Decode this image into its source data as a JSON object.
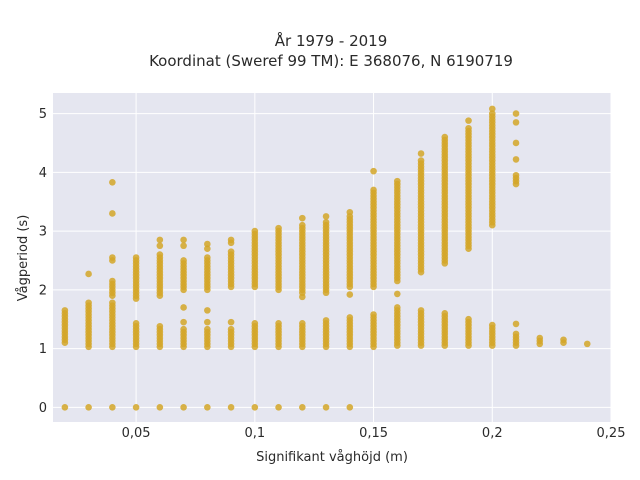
{
  "chart_data": {
    "type": "scatter",
    "title": "År 1979 - 2019",
    "subtitle": "Koordinat (Sweref 99 TM): E 368076, N 6190719",
    "xlabel": "Signifikant våghöjd (m)",
    "ylabel": "Vågperiod (s)",
    "xlim": [
      0.015,
      0.25
    ],
    "ylim": [
      -0.25,
      5.35
    ],
    "xticks": [
      0.05,
      0.1,
      0.15,
      0.2,
      0.25
    ],
    "xtick_labels": [
      "0,05",
      "0,1",
      "0,15",
      "0,2",
      "0,25"
    ],
    "yticks": [
      0,
      1,
      2,
      3,
      4,
      5
    ],
    "ytick_labels": [
      "0",
      "1",
      "2",
      "3",
      "4",
      "5"
    ],
    "grid": true,
    "colors": {
      "marker": "#d4a628",
      "plot_bg": "#e5e6f0",
      "grid": "#ffffff"
    },
    "columns": [
      {
        "x": 0.02,
        "ranges": [
          [
            1.1,
            1.65
          ]
        ],
        "points": [
          0
        ]
      },
      {
        "x": 0.03,
        "ranges": [
          [
            1.03,
            1.8
          ]
        ],
        "points": [
          0,
          2.27
        ]
      },
      {
        "x": 0.04,
        "ranges": [
          [
            1.03,
            1.8
          ],
          [
            1.9,
            2.15
          ]
        ],
        "points": [
          0,
          2.5,
          2.55,
          3.3,
          3.83
        ]
      },
      {
        "x": 0.05,
        "ranges": [
          [
            1.03,
            1.45
          ],
          [
            1.85,
            2.55
          ]
        ],
        "points": [
          0
        ]
      },
      {
        "x": 0.06,
        "ranges": [
          [
            1.03,
            1.4
          ],
          [
            1.9,
            2.6
          ]
        ],
        "points": [
          0,
          2.75,
          2.85
        ]
      },
      {
        "x": 0.07,
        "ranges": [
          [
            1.03,
            1.35
          ],
          [
            2.0,
            2.5
          ]
        ],
        "points": [
          0,
          1.45,
          1.7,
          2.75,
          2.85
        ]
      },
      {
        "x": 0.08,
        "ranges": [
          [
            1.03,
            1.35
          ],
          [
            2.0,
            2.55
          ]
        ],
        "points": [
          0,
          1.45,
          1.65,
          2.7,
          2.78
        ]
      },
      {
        "x": 0.09,
        "ranges": [
          [
            1.03,
            1.35
          ],
          [
            2.05,
            2.65
          ]
        ],
        "points": [
          0,
          1.45,
          2.8,
          2.85
        ]
      },
      {
        "x": 0.1,
        "ranges": [
          [
            1.03,
            1.45
          ],
          [
            2.05,
            2.98
          ]
        ],
        "points": [
          0,
          3.0
        ]
      },
      {
        "x": 0.11,
        "ranges": [
          [
            1.03,
            1.45
          ],
          [
            2.0,
            3.05
          ]
        ],
        "points": [
          0
        ]
      },
      {
        "x": 0.12,
        "ranges": [
          [
            1.03,
            1.45
          ],
          [
            1.95,
            3.1
          ]
        ],
        "points": [
          0,
          1.88,
          3.22
        ]
      },
      {
        "x": 0.13,
        "ranges": [
          [
            1.03,
            1.5
          ],
          [
            2.0,
            3.15
          ]
        ],
        "points": [
          0,
          1.95,
          3.25
        ]
      },
      {
        "x": 0.14,
        "ranges": [
          [
            1.03,
            1.55
          ],
          [
            2.05,
            3.25
          ]
        ],
        "points": [
          0,
          1.92,
          3.32
        ]
      },
      {
        "x": 0.15,
        "ranges": [
          [
            1.03,
            1.6
          ],
          [
            2.05,
            3.7
          ]
        ],
        "points": [
          4.02
        ]
      },
      {
        "x": 0.16,
        "ranges": [
          [
            1.05,
            1.7
          ],
          [
            2.15,
            3.85
          ]
        ],
        "points": [
          1.93
        ]
      },
      {
        "x": 0.17,
        "ranges": [
          [
            1.05,
            1.65
          ],
          [
            2.3,
            4.2
          ]
        ],
        "points": [
          4.32
        ]
      },
      {
        "x": 0.18,
        "ranges": [
          [
            1.05,
            1.6
          ],
          [
            2.45,
            4.6
          ]
        ],
        "points": []
      },
      {
        "x": 0.19,
        "ranges": [
          [
            1.05,
            1.5
          ],
          [
            2.7,
            4.75
          ]
        ],
        "points": [
          4.88
        ]
      },
      {
        "x": 0.2,
        "ranges": [
          [
            1.05,
            1.42
          ],
          [
            3.1,
            5.0
          ]
        ],
        "points": [
          5.08
        ]
      },
      {
        "x": 0.21,
        "ranges": [
          [
            1.05,
            1.25
          ],
          [
            3.8,
            3.95
          ]
        ],
        "points": [
          1.42,
          4.22,
          4.5,
          4.85,
          5.0
        ]
      },
      {
        "x": 0.22,
        "ranges": [
          [
            1.08,
            1.18
          ]
        ],
        "points": []
      },
      {
        "x": 0.23,
        "ranges": [
          [
            1.1,
            1.15
          ]
        ],
        "points": []
      },
      {
        "x": 0.24,
        "ranges": [
          [
            1.08,
            1.12
          ]
        ],
        "points": []
      }
    ]
  }
}
